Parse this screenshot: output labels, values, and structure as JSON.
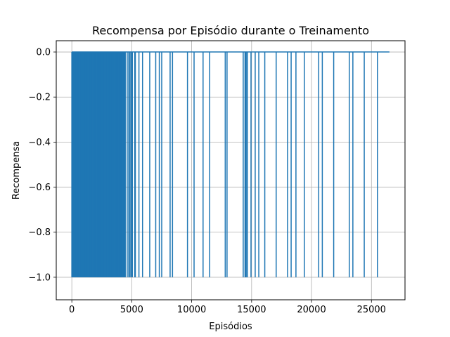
{
  "chart_data": {
    "type": "line",
    "title": "Recompensa por Episódio durante o Treinamento",
    "xlabel": "Episódios",
    "ylabel": "Recompensa",
    "xlim": [
      -1300,
      27800
    ],
    "ylim": [
      -1.1,
      0.05
    ],
    "grid": true,
    "line_color": "#1f77b4",
    "x_ticks": [
      0,
      5000,
      10000,
      15000,
      20000,
      25000
    ],
    "x_tick_labels": [
      "0",
      "5000",
      "10000",
      "15000",
      "20000",
      "25000"
    ],
    "y_ticks": [
      0.0,
      -0.2,
      -0.4,
      -0.6,
      -0.8,
      -1.0
    ],
    "y_tick_labels": [
      "0.0",
      "−0.2",
      "−0.4",
      "−0.6",
      "−0.8",
      "−1.0"
    ],
    "series": [
      {
        "baseline": 0.0,
        "episode_range": [
          0,
          26500
        ],
        "dense_failure_region": [
          0,
          4500
        ],
        "failure_value": -1.0,
        "failure_episodes": [
          0,
          50,
          120,
          190,
          260,
          330,
          400,
          470,
          540,
          610,
          680,
          750,
          820,
          890,
          960,
          1030,
          1100,
          1170,
          1240,
          1310,
          1380,
          1450,
          1520,
          1590,
          1660,
          1730,
          1800,
          1870,
          1940,
          2010,
          2080,
          2150,
          2220,
          2290,
          2360,
          2430,
          2500,
          2570,
          2640,
          2710,
          2780,
          2850,
          2920,
          2990,
          3060,
          3130,
          3200,
          3270,
          3340,
          3410,
          3480,
          3550,
          3620,
          3690,
          3760,
          3830,
          3900,
          3970,
          4040,
          4110,
          4180,
          4250,
          4330,
          4450,
          4620,
          4750,
          4850,
          4950,
          5050,
          5250,
          5300,
          5600,
          5900,
          6500,
          7000,
          7300,
          7500,
          8200,
          8400,
          9650,
          10200,
          10950,
          11500,
          12800,
          12950,
          14300,
          14450,
          14500,
          14550,
          14650,
          14950,
          15300,
          15600,
          16100,
          17050,
          18000,
          18300,
          18700,
          19400,
          20600,
          20900,
          21850,
          23150,
          23450,
          24400,
          25500
        ]
      }
    ]
  }
}
